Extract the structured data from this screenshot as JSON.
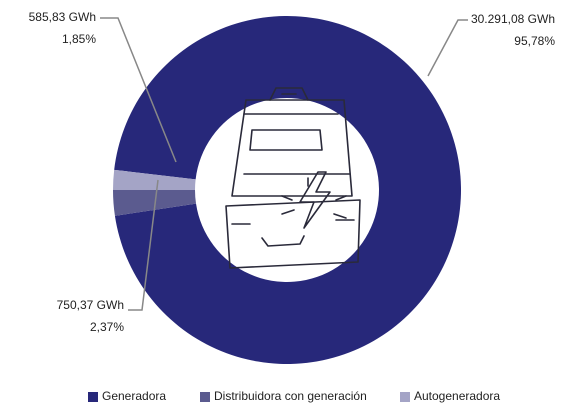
{
  "chart_data": {
    "type": "pie",
    "categories": [
      "Generadora",
      "Distribuidora con generación",
      "Autogeneradora"
    ],
    "values": [
      30291.08,
      750.37,
      585.83
    ],
    "value_labels": [
      "30.291,08 GWh",
      "750,37 GWh",
      "585,83 GWh"
    ],
    "percentages": [
      95.78,
      2.37,
      1.85
    ],
    "percentage_labels": [
      "95,78%",
      "2,37%",
      "1,85%"
    ],
    "colors": [
      "#27287a",
      "#5b5b8f",
      "#a4a4c6"
    ],
    "donut": true,
    "legend": "bottom"
  }
}
